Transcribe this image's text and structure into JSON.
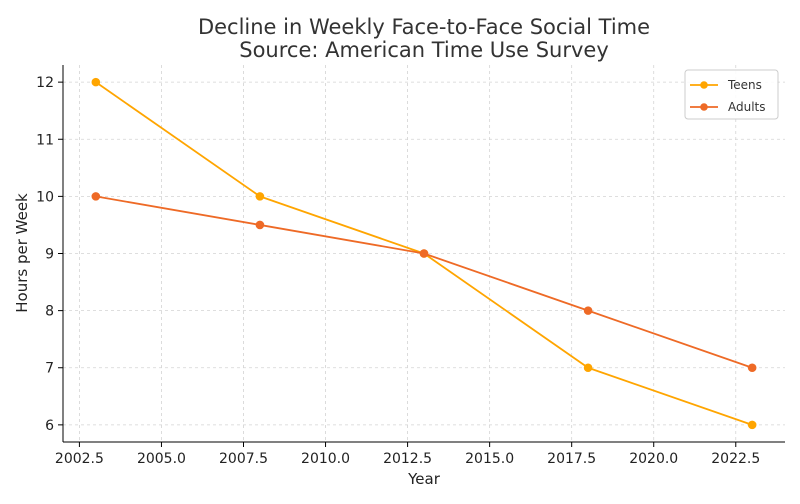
{
  "chart_data": {
    "type": "line",
    "title_line1": "Decline in Weekly Face-to-Face Social Time",
    "title_line2": "Source: American Time Use Survey",
    "xlabel": "Year",
    "ylabel": "Hours per Week",
    "xlim": [
      2002.0,
      2024.0
    ],
    "ylim": [
      5.7,
      12.3
    ],
    "x_ticks": [
      2002.5,
      2005.0,
      2007.5,
      2010.0,
      2012.5,
      2015.0,
      2017.5,
      2020.0,
      2022.5
    ],
    "x_tick_labels": [
      "2002.5",
      "2005.0",
      "2007.5",
      "2010.0",
      "2012.5",
      "2015.0",
      "2017.5",
      "2020.0",
      "2022.5"
    ],
    "y_ticks": [
      6,
      7,
      8,
      9,
      10,
      11,
      12
    ],
    "y_tick_labels": [
      "6",
      "7",
      "8",
      "9",
      "10",
      "11",
      "12"
    ],
    "grid": true,
    "legend_position": "top-right",
    "x": [
      2003,
      2008,
      2013,
      2018,
      2023
    ],
    "series": [
      {
        "name": "Teens",
        "color": "#FFA500",
        "values": [
          12,
          10,
          9,
          7,
          6
        ]
      },
      {
        "name": "Adults",
        "color": "#EE6A26",
        "values": [
          10,
          9.5,
          9,
          8,
          7
        ]
      }
    ]
  }
}
